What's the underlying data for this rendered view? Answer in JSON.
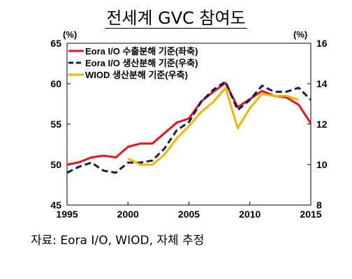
{
  "title": "전세계 GVC 참여도",
  "source": "자료: Eora I/O, WIOD, 자체 추정",
  "chart_data": {
    "type": "line",
    "title": "전세계 GVC 참여도",
    "left_axis": {
      "unit": "(%)",
      "ylim": [
        45,
        65
      ],
      "ticks": [
        45,
        50,
        55,
        60,
        65
      ]
    },
    "right_axis": {
      "unit": "(%)",
      "ylim": [
        8,
        16
      ],
      "ticks": [
        8,
        10,
        12,
        14,
        16
      ]
    },
    "x_axis": {
      "xlim": [
        1995,
        2015
      ],
      "ticks": [
        1995,
        2000,
        2005,
        2010,
        2015
      ]
    },
    "grid": false,
    "legend_position": "top-left",
    "series": [
      {
        "name": "Eora I/O 수출분해 기준(좌축)",
        "axis": "left",
        "color": "#e8141b",
        "dash": "solid",
        "x": [
          1995,
          1996,
          1997,
          1998,
          1999,
          2000,
          2001,
          2002,
          2003,
          2004,
          2005,
          2006,
          2007,
          2008,
          2009,
          2010,
          2011,
          2012,
          2013,
          2014,
          2015
        ],
        "y": [
          50.0,
          50.3,
          50.9,
          51.1,
          50.9,
          52.2,
          52.6,
          52.6,
          53.9,
          55.2,
          55.7,
          57.8,
          59.0,
          60.1,
          57.1,
          58.1,
          59.1,
          58.5,
          58.3,
          57.4,
          55.1
        ]
      },
      {
        "name": "Eora I/O 생산분해 기준(우축)",
        "axis": "right",
        "color": "#0d1e50",
        "dash": "dashed",
        "x": [
          1995,
          1996,
          1997,
          1998,
          1999,
          2000,
          2001,
          2002,
          2003,
          2004,
          2005,
          2006,
          2007,
          2008,
          2009,
          2010,
          2011,
          2012,
          2013,
          2014,
          2015
        ],
        "y": [
          9.6,
          9.9,
          10.1,
          9.7,
          9.6,
          10.1,
          10.1,
          10.2,
          10.8,
          11.7,
          12.1,
          13.1,
          13.7,
          14.1,
          12.7,
          13.2,
          13.9,
          13.6,
          13.6,
          13.8,
          13.2
        ]
      },
      {
        "name": "WIOD 생산분해 기준(우축)",
        "axis": "right",
        "color": "#f7b500",
        "dash": "solid",
        "x": [
          2000,
          2001,
          2002,
          2003,
          2004,
          2005,
          2006,
          2007,
          2008,
          2009,
          2010,
          2011,
          2012,
          2013,
          2014
        ],
        "y": [
          10.3,
          10.0,
          10.0,
          10.5,
          11.3,
          11.9,
          12.6,
          13.1,
          13.8,
          11.8,
          12.8,
          13.5,
          13.4,
          13.4,
          13.2
        ]
      }
    ]
  }
}
